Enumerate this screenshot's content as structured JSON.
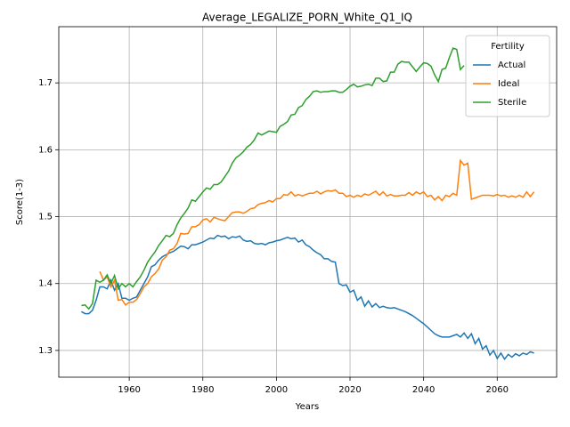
{
  "chart_data": {
    "type": "line",
    "title": "Average_LEGALIZE_PORN_White_Q1_IQ",
    "xlabel": "Years",
    "ylabel": "Score(1-3)",
    "legend_title": "Fertility",
    "legend": "upper right",
    "grid": true,
    "xlim": [
      1940.85,
      2076.15
    ],
    "ylim": [
      1.26,
      1.784
    ],
    "xticks": [
      1960,
      1980,
      2000,
      2020,
      2040,
      2060
    ],
    "yticks": [
      1.3,
      1.4,
      1.5,
      1.6,
      1.7
    ],
    "x": [
      1947,
      1948,
      1949,
      1950,
      1951,
      1952,
      1953,
      1954,
      1955,
      1956,
      1957,
      1958,
      1959,
      1960,
      1961,
      1962,
      1963,
      1964,
      1965,
      1966,
      1967,
      1968,
      1969,
      1970,
      1971,
      1972,
      1973,
      1974,
      1975,
      1976,
      1977,
      1978,
      1979,
      1980,
      1981,
      1982,
      1983,
      1984,
      1985,
      1986,
      1987,
      1988,
      1989,
      1990,
      1991,
      1992,
      1993,
      1994,
      1995,
      1996,
      1997,
      1998,
      1999,
      2000,
      2001,
      2002,
      2003,
      2004,
      2005,
      2006,
      2007,
      2008,
      2009,
      2010,
      2011,
      2012,
      2013,
      2014,
      2015,
      2016,
      2017,
      2018,
      2019,
      2020,
      2021,
      2022,
      2023,
      2024,
      2025,
      2026,
      2027,
      2028,
      2029,
      2030,
      2031,
      2032,
      2033,
      2034,
      2035,
      2036,
      2037,
      2038,
      2039,
      2040,
      2041,
      2042,
      2043,
      2044,
      2045,
      2046,
      2047,
      2048,
      2049,
      2050,
      2051,
      2052,
      2053,
      2054,
      2055,
      2056,
      2057,
      2058,
      2059,
      2060,
      2061,
      2062,
      2063,
      2064,
      2065,
      2066,
      2067,
      2068,
      2069,
      2070
    ],
    "series": [
      {
        "name": "Actual",
        "color": "#1f77b4",
        "values": [
          1.358,
          1.355,
          1.355,
          1.36,
          1.375,
          1.395,
          1.395,
          1.392,
          1.405,
          1.39,
          1.4,
          1.378,
          1.378,
          1.375,
          1.378,
          1.38,
          1.39,
          1.4,
          1.41,
          1.425,
          1.428,
          1.435,
          1.44,
          1.443,
          1.446,
          1.448,
          1.452,
          1.456,
          1.455,
          1.452,
          1.458,
          1.458,
          1.46,
          1.462,
          1.465,
          1.468,
          1.467,
          1.472,
          1.47,
          1.471,
          1.467,
          1.47,
          1.469,
          1.471,
          1.465,
          1.463,
          1.464,
          1.46,
          1.459,
          1.46,
          1.458,
          1.461,
          1.462,
          1.464,
          1.465,
          1.467,
          1.469,
          1.467,
          1.468,
          1.462,
          1.465,
          1.458,
          1.455,
          1.45,
          1.446,
          1.443,
          1.437,
          1.437,
          1.433,
          1.432,
          1.4,
          1.397,
          1.398,
          1.387,
          1.39,
          1.375,
          1.38,
          1.366,
          1.374,
          1.365,
          1.37,
          1.364,
          1.366,
          1.364,
          1.363,
          1.364,
          1.362,
          1.36,
          1.358,
          1.355,
          1.352,
          1.348,
          1.344,
          1.34,
          1.335,
          1.33,
          1.325,
          1.322,
          1.32,
          1.32,
          1.32,
          1.322,
          1.324,
          1.32,
          1.326,
          1.318,
          1.325,
          1.31,
          1.318,
          1.302,
          1.307,
          1.293,
          1.3,
          1.288,
          1.296,
          1.287,
          1.294,
          1.29,
          1.295,
          1.292,
          1.296,
          1.294,
          1.298,
          1.296
        ]
      },
      {
        "name": "Ideal",
        "color": "#ff7f0e",
        "values": [
          null,
          null,
          null,
          null,
          null,
          1.418,
          1.405,
          1.41,
          1.395,
          1.405,
          1.375,
          1.376,
          1.368,
          1.372,
          1.372,
          1.376,
          1.385,
          1.395,
          1.4,
          1.41,
          1.415,
          1.422,
          1.435,
          1.44,
          1.45,
          1.452,
          1.46,
          1.475,
          1.474,
          1.475,
          1.485,
          1.485,
          1.488,
          1.495,
          1.497,
          1.492,
          1.499,
          1.497,
          1.495,
          1.494,
          1.5,
          1.506,
          1.507,
          1.507,
          1.505,
          1.508,
          1.512,
          1.513,
          1.518,
          1.52,
          1.521,
          1.524,
          1.522,
          1.527,
          1.527,
          1.533,
          1.532,
          1.537,
          1.531,
          1.533,
          1.531,
          1.533,
          1.535,
          1.535,
          1.538,
          1.534,
          1.537,
          1.539,
          1.538,
          1.54,
          1.535,
          1.535,
          1.53,
          1.532,
          1.529,
          1.532,
          1.53,
          1.534,
          1.532,
          1.535,
          1.538,
          1.532,
          1.537,
          1.531,
          1.533,
          1.531,
          1.531,
          1.532,
          1.532,
          1.536,
          1.532,
          1.537,
          1.534,
          1.537,
          1.53,
          1.532,
          1.525,
          1.53,
          1.524,
          1.532,
          1.53,
          1.535,
          1.532,
          1.584,
          1.577,
          1.58,
          1.526,
          1.528,
          1.53,
          1.532,
          1.532,
          1.532,
          1.531,
          1.533,
          1.531,
          1.532,
          1.529,
          1.531,
          1.529,
          1.532,
          1.529,
          1.537,
          1.53,
          1.537
        ]
      },
      {
        "name": "Sterile",
        "color": "#2ca02c",
        "values": [
          1.367,
          1.368,
          1.362,
          1.37,
          1.405,
          1.402,
          1.405,
          1.413,
          1.4,
          1.412,
          1.392,
          1.4,
          1.395,
          1.4,
          1.395,
          1.403,
          1.41,
          1.42,
          1.432,
          1.44,
          1.447,
          1.457,
          1.464,
          1.472,
          1.47,
          1.475,
          1.488,
          1.498,
          1.505,
          1.513,
          1.525,
          1.523,
          1.53,
          1.537,
          1.543,
          1.541,
          1.548,
          1.548,
          1.552,
          1.56,
          1.568,
          1.58,
          1.588,
          1.592,
          1.597,
          1.604,
          1.608,
          1.615,
          1.625,
          1.622,
          1.625,
          1.628,
          1.627,
          1.626,
          1.635,
          1.638,
          1.642,
          1.652,
          1.653,
          1.663,
          1.666,
          1.675,
          1.68,
          1.687,
          1.688,
          1.686,
          1.687,
          1.687,
          1.688,
          1.688,
          1.686,
          1.686,
          1.69,
          1.695,
          1.698,
          1.694,
          1.695,
          1.697,
          1.698,
          1.696,
          1.707,
          1.707,
          1.702,
          1.703,
          1.716,
          1.716,
          1.728,
          1.732,
          1.731,
          1.731,
          1.724,
          1.717,
          1.724,
          1.73,
          1.729,
          1.725,
          1.712,
          1.702,
          1.72,
          1.722,
          1.738,
          1.752,
          1.75,
          1.72,
          1.726,
          null,
          null,
          null,
          null,
          null,
          null,
          null,
          null,
          null,
          null,
          null,
          null,
          null,
          null,
          null,
          null,
          null,
          null,
          null
        ]
      }
    ]
  }
}
